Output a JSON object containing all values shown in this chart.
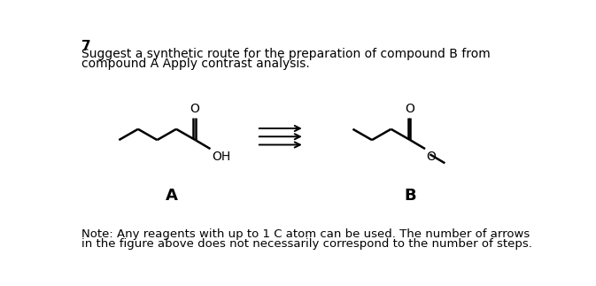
{
  "title_number": "7",
  "line1": "Suggest a synthetic route for the preparation of compound B from",
  "line2": "compound A Apply contrast analysis.",
  "note_line1": "Note: Any reagents with up to 1 C atom can be used. The number of arrows",
  "note_line2": "in the figure above does not necessarily correspond to the number of steps.",
  "label_A": "A",
  "label_B": "B",
  "bg_color": "#ffffff",
  "text_color": "#000000",
  "lw": 1.8,
  "arrow_lw": 1.4,
  "font": "DejaVu Sans",
  "title_fs": 11,
  "body_fs": 10,
  "note_fs": 9.5,
  "label_fs": 13
}
